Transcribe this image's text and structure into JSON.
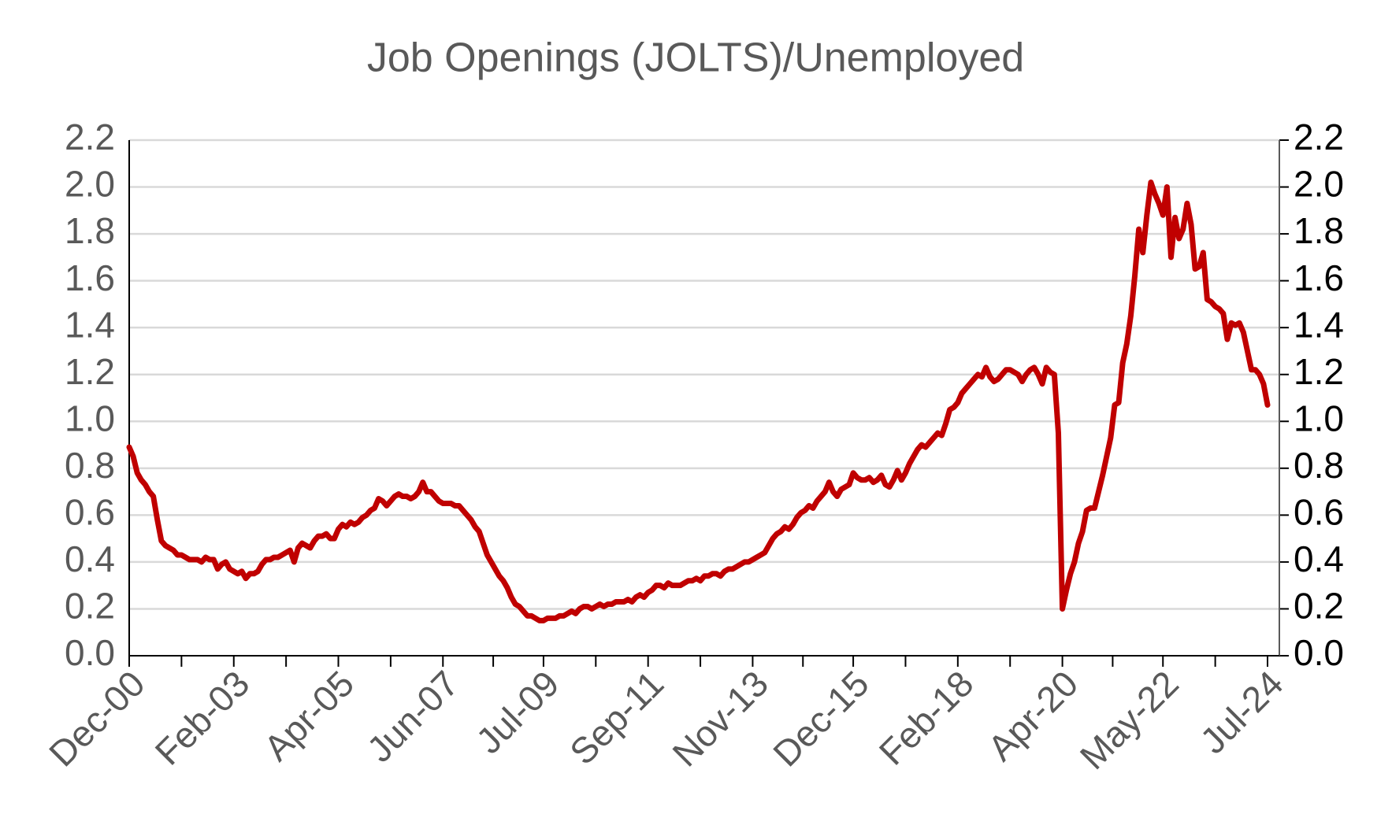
{
  "chart_data": {
    "type": "line",
    "title": "Job Openings (JOLTS)/Unemployed",
    "categories": [
      "Dec-00",
      null,
      null,
      null,
      null,
      null,
      null,
      null,
      null,
      null,
      null,
      null,
      null,
      null,
      null,
      null,
      null,
      null,
      null,
      null,
      null,
      null,
      null,
      null,
      null,
      null,
      "Feb-03",
      null,
      null,
      null,
      null,
      null,
      null,
      null,
      null,
      null,
      null,
      null,
      null,
      null,
      null,
      null,
      null,
      null,
      null,
      null,
      null,
      null,
      null,
      null,
      null,
      null,
      "Apr-05",
      null,
      null,
      null,
      null,
      null,
      null,
      null,
      null,
      null,
      null,
      null,
      null,
      null,
      null,
      null,
      null,
      null,
      null,
      null,
      null,
      null,
      null,
      null,
      null,
      null,
      "Jun-07",
      null,
      null,
      null,
      null,
      null,
      null,
      null,
      null,
      null,
      null,
      null,
      null,
      null,
      null,
      null,
      null,
      null,
      null,
      null,
      null,
      null,
      null,
      null,
      null,
      "Jul-09",
      null,
      null,
      null,
      null,
      null,
      null,
      null,
      null,
      null,
      null,
      null,
      null,
      null,
      null,
      null,
      null,
      null,
      null,
      null,
      null,
      null,
      null,
      null,
      null,
      null,
      "Sep-11",
      null,
      null,
      null,
      null,
      null,
      null,
      null,
      null,
      null,
      null,
      null,
      null,
      null,
      null,
      null,
      null,
      null,
      null,
      null,
      null,
      null,
      null,
      null,
      null,
      null,
      "Nov-13",
      null,
      null,
      null,
      null,
      null,
      null,
      null,
      null,
      null,
      null,
      null,
      null,
      null,
      null,
      null,
      null,
      null,
      null,
      null,
      null,
      null,
      null,
      null,
      null,
      "Dec-15",
      null,
      null,
      null,
      null,
      null,
      null,
      null,
      null,
      null,
      null,
      null,
      null,
      null,
      null,
      null,
      null,
      null,
      null,
      null,
      null,
      null,
      null,
      null,
      null,
      null,
      "Feb-18",
      null,
      null,
      null,
      null,
      null,
      null,
      null,
      null,
      null,
      null,
      null,
      null,
      null,
      null,
      null,
      null,
      null,
      null,
      null,
      null,
      null,
      null,
      null,
      null,
      null,
      "Apr-20",
      null,
      null,
      null,
      null,
      null,
      null,
      null,
      null,
      null,
      null,
      null,
      null,
      null,
      null,
      null,
      null,
      null,
      null,
      null,
      null,
      null,
      null,
      null,
      null,
      "May-22",
      null,
      null,
      null,
      null,
      null,
      null,
      null,
      null,
      null,
      null,
      null,
      null,
      null,
      null,
      null,
      null,
      null,
      null,
      null,
      null,
      null,
      null,
      null,
      null,
      null,
      "Jul-24"
    ],
    "series": [
      {
        "color": "#c00000",
        "values": [
          0.89,
          0.85,
          0.78,
          0.75,
          0.73,
          0.7,
          0.68,
          0.58,
          0.49,
          0.47,
          0.46,
          0.45,
          0.43,
          0.43,
          0.42,
          0.41,
          0.41,
          0.41,
          0.4,
          0.42,
          0.41,
          0.41,
          0.37,
          0.39,
          0.4,
          0.37,
          0.36,
          0.35,
          0.36,
          0.33,
          0.35,
          0.35,
          0.36,
          0.39,
          0.41,
          0.41,
          0.42,
          0.42,
          0.43,
          0.44,
          0.45,
          0.4,
          0.46,
          0.48,
          0.47,
          0.46,
          0.49,
          0.51,
          0.51,
          0.52,
          0.5,
          0.5,
          0.54,
          0.56,
          0.55,
          0.57,
          0.56,
          0.57,
          0.59,
          0.6,
          0.62,
          0.63,
          0.67,
          0.66,
          0.64,
          0.66,
          0.68,
          0.69,
          0.68,
          0.68,
          0.67,
          0.68,
          0.7,
          0.74,
          0.7,
          0.7,
          0.68,
          0.66,
          0.65,
          0.65,
          0.65,
          0.64,
          0.64,
          0.62,
          0.6,
          0.58,
          0.55,
          0.53,
          0.48,
          0.43,
          0.4,
          0.37,
          0.34,
          0.32,
          0.29,
          0.25,
          0.22,
          0.21,
          0.19,
          0.17,
          0.17,
          0.16,
          0.15,
          0.15,
          0.16,
          0.16,
          0.16,
          0.17,
          0.17,
          0.18,
          0.19,
          0.18,
          0.2,
          0.21,
          0.21,
          0.2,
          0.21,
          0.22,
          0.21,
          0.22,
          0.22,
          0.23,
          0.23,
          0.23,
          0.24,
          0.23,
          0.25,
          0.26,
          0.25,
          0.27,
          0.28,
          0.3,
          0.3,
          0.29,
          0.31,
          0.3,
          0.3,
          0.3,
          0.31,
          0.32,
          0.32,
          0.33,
          0.32,
          0.34,
          0.34,
          0.35,
          0.35,
          0.34,
          0.36,
          0.37,
          0.37,
          0.38,
          0.39,
          0.4,
          0.4,
          0.41,
          0.42,
          0.43,
          0.44,
          0.47,
          0.5,
          0.52,
          0.53,
          0.55,
          0.54,
          0.56,
          0.59,
          0.61,
          0.62,
          0.64,
          0.63,
          0.66,
          0.68,
          0.7,
          0.74,
          0.7,
          0.68,
          0.71,
          0.72,
          0.73,
          0.78,
          0.76,
          0.75,
          0.75,
          0.76,
          0.74,
          0.75,
          0.77,
          0.73,
          0.72,
          0.75,
          0.79,
          0.75,
          0.78,
          0.82,
          0.85,
          0.88,
          0.9,
          0.89,
          0.91,
          0.93,
          0.95,
          0.94,
          0.99,
          1.05,
          1.06,
          1.08,
          1.12,
          1.14,
          1.16,
          1.18,
          1.2,
          1.19,
          1.23,
          1.19,
          1.17,
          1.18,
          1.2,
          1.22,
          1.22,
          1.21,
          1.2,
          1.17,
          1.2,
          1.22,
          1.23,
          1.2,
          1.16,
          1.23,
          1.21,
          1.2,
          0.95,
          0.2,
          0.28,
          0.35,
          0.4,
          0.48,
          0.53,
          0.62,
          0.63,
          0.63,
          0.7,
          0.77,
          0.85,
          0.93,
          1.07,
          1.08,
          1.25,
          1.33,
          1.45,
          1.62,
          1.82,
          1.72,
          1.88,
          2.02,
          1.97,
          1.93,
          1.88,
          2.0,
          1.7,
          1.87,
          1.78,
          1.82,
          1.93,
          1.84,
          1.65,
          1.66,
          1.72,
          1.52,
          1.51,
          1.49,
          1.48,
          1.46,
          1.35,
          1.42,
          1.41,
          1.42,
          1.38,
          1.3,
          1.22,
          1.22,
          1.2,
          1.16,
          1.07
        ]
      }
    ],
    "ylim": [
      0,
      2.2
    ],
    "yticks": [
      {
        "value": 0,
        "label": "0.0"
      },
      0.2,
      0.4,
      0.6,
      0.8,
      {
        "value": 1,
        "label": "1.0"
      },
      1.2,
      1.4,
      1.6,
      1.8,
      {
        "value": 2,
        "label": "2.0"
      },
      2.2
    ],
    "y2lim": [
      0,
      2.2
    ],
    "y2ticks": [
      {
        "value": 0,
        "label": "0.0"
      },
      0.2,
      0.4,
      0.6,
      0.8,
      {
        "value": 1,
        "label": "1.0"
      },
      1.2,
      1.4,
      1.6,
      1.8,
      {
        "value": 2,
        "label": "2.0"
      },
      2.2
    ],
    "grid": true
  }
}
